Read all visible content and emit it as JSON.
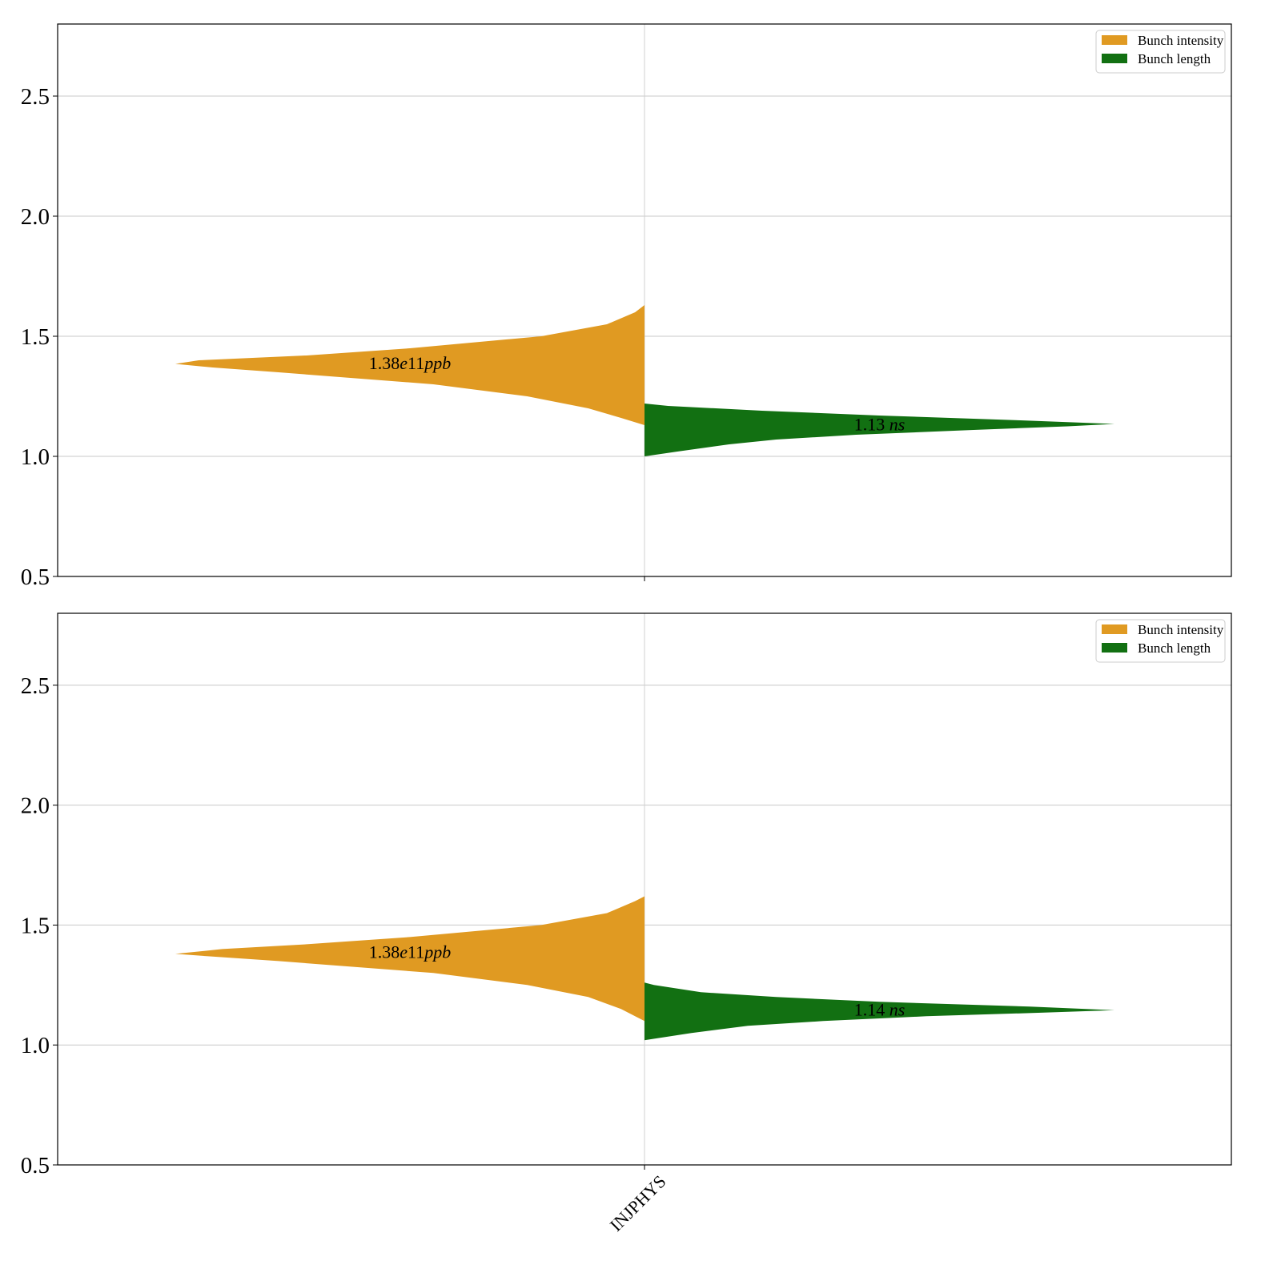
{
  "chart_data": [
    {
      "type": "violin",
      "categories": [
        "INJPHYS"
      ],
      "ylim": [
        0.5,
        2.8
      ],
      "yticks": [
        "0.5",
        "1.0",
        "1.5",
        "2.0",
        "2.5"
      ],
      "grid": true,
      "legend_position": "top-right",
      "legend": [
        "Bunch intensity",
        "Bunch length"
      ],
      "series": [
        {
          "name": "Bunch intensity",
          "color": "#E09A22",
          "side": "left",
          "y_min": 1.13,
          "y_max": 1.63,
          "profile": [
            [
              1.13,
              0.0
            ],
            [
              1.16,
              0.05
            ],
            [
              1.2,
              0.12
            ],
            [
              1.25,
              0.25
            ],
            [
              1.3,
              0.45
            ],
            [
              1.35,
              0.78
            ],
            [
              1.37,
              0.92
            ],
            [
              1.385,
              1.0
            ],
            [
              1.4,
              0.95
            ],
            [
              1.42,
              0.72
            ],
            [
              1.45,
              0.5
            ],
            [
              1.5,
              0.22
            ],
            [
              1.55,
              0.08
            ],
            [
              1.6,
              0.02
            ],
            [
              1.63,
              0.0
            ]
          ],
          "annotation": {
            "value": "1.38",
            "exp": "e11",
            "unit": "ppb",
            "y": 1.39
          }
        },
        {
          "name": "Bunch length",
          "color": "#127012",
          "side": "right",
          "y_min": 1.0,
          "y_max": 1.22,
          "profile": [
            [
              1.0,
              0.0
            ],
            [
              1.02,
              0.07
            ],
            [
              1.05,
              0.18
            ],
            [
              1.07,
              0.28
            ],
            [
              1.09,
              0.45
            ],
            [
              1.11,
              0.7
            ],
            [
              1.125,
              0.9
            ],
            [
              1.135,
              1.0
            ],
            [
              1.15,
              0.8
            ],
            [
              1.17,
              0.5
            ],
            [
              1.19,
              0.25
            ],
            [
              1.21,
              0.05
            ],
            [
              1.22,
              0.0
            ]
          ],
          "annotation": {
            "value": "1.13",
            "exp": "",
            "unit": "ns",
            "y": 1.135
          }
        }
      ]
    },
    {
      "type": "violin",
      "categories": [
        "INJPHYS"
      ],
      "ylim": [
        0.5,
        2.8
      ],
      "yticks": [
        "0.5",
        "1.0",
        "1.5",
        "2.0",
        "2.5"
      ],
      "grid": true,
      "legend_position": "top-right",
      "legend": [
        "Bunch intensity",
        "Bunch length"
      ],
      "series": [
        {
          "name": "Bunch intensity",
          "color": "#E09A22",
          "side": "left",
          "y_min": 1.1,
          "y_max": 1.62,
          "profile": [
            [
              1.1,
              0.0
            ],
            [
              1.15,
              0.05
            ],
            [
              1.2,
              0.12
            ],
            [
              1.25,
              0.25
            ],
            [
              1.3,
              0.45
            ],
            [
              1.35,
              0.78
            ],
            [
              1.37,
              0.93
            ],
            [
              1.38,
              1.0
            ],
            [
              1.4,
              0.9
            ],
            [
              1.42,
              0.72
            ],
            [
              1.45,
              0.5
            ],
            [
              1.5,
              0.22
            ],
            [
              1.55,
              0.08
            ],
            [
              1.6,
              0.02
            ],
            [
              1.62,
              0.0
            ]
          ],
          "annotation": {
            "value": "1.38",
            "exp": "e11",
            "unit": "ppb",
            "y": 1.39
          }
        },
        {
          "name": "Bunch length",
          "color": "#127012",
          "side": "right",
          "y_min": 1.02,
          "y_max": 1.26,
          "profile": [
            [
              1.02,
              0.0
            ],
            [
              1.05,
              0.1
            ],
            [
              1.08,
              0.22
            ],
            [
              1.1,
              0.38
            ],
            [
              1.12,
              0.6
            ],
            [
              1.135,
              0.85
            ],
            [
              1.145,
              1.0
            ],
            [
              1.16,
              0.82
            ],
            [
              1.18,
              0.5
            ],
            [
              1.2,
              0.28
            ],
            [
              1.22,
              0.12
            ],
            [
              1.25,
              0.02
            ],
            [
              1.26,
              0.0
            ]
          ],
          "annotation": {
            "value": "1.14",
            "exp": "",
            "unit": "ns",
            "y": 1.15
          }
        }
      ]
    }
  ]
}
